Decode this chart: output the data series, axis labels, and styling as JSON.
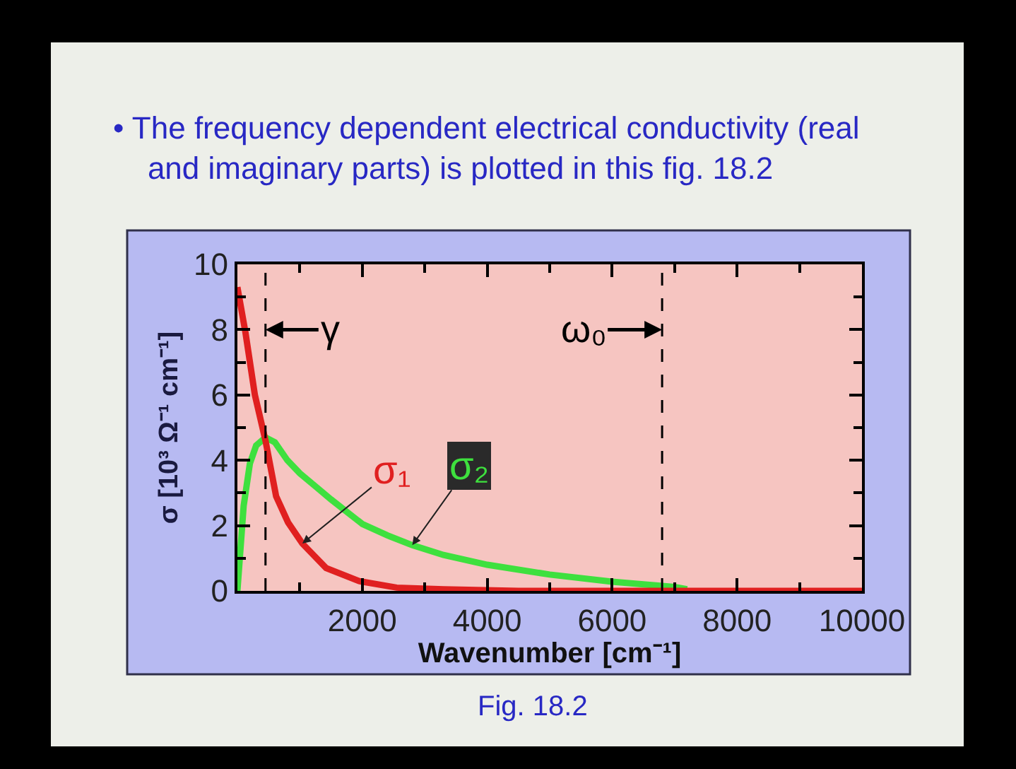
{
  "chart_data": {
    "type": "line",
    "title": "• The frequency dependent electrical conductivity (real and imaginary parts) is plotted in this fig. 18.2",
    "xlabel": "Wavenumber [cm⁻¹]",
    "ylabel": "σ [10³ Ω⁻¹ cm⁻¹]",
    "annotations": [
      "Fig. 18.2"
    ],
    "series": [
      {
        "name": "σ₁",
        "color": "#e02020",
        "x": [
          0,
          130,
          280,
          450,
          620,
          810,
          1040,
          1420,
          1950,
          2550,
          3300,
          4500,
          10000
        ],
        "values": [
          9.3,
          7.9,
          6.0,
          4.6,
          2.9,
          2.1,
          1.45,
          0.7,
          0.3,
          0.1,
          0.05,
          0,
          0
        ]
      },
      {
        "name": "σ₂",
        "color": "#3ee03e",
        "x": [
          0,
          100,
          200,
          300,
          450,
          600,
          800,
          1000,
          1250,
          1500,
          1800,
          2000,
          2400,
          2800,
          3300,
          4000,
          5000,
          6000,
          6500,
          7000,
          7200
        ],
        "values": [
          0,
          2.6,
          3.9,
          4.45,
          4.7,
          4.55,
          4.0,
          3.6,
          3.2,
          2.8,
          2.35,
          2.05,
          1.7,
          1.4,
          1.1,
          0.8,
          0.5,
          0.28,
          0.2,
          0.12,
          0.05
        ]
      }
    ],
    "xlim": [
      0,
      10000
    ],
    "ylim": [
      0,
      10
    ],
    "xticks": [
      {
        "value": 1000,
        "label": null
      },
      2000,
      {
        "value": 3000,
        "label": null
      },
      4000,
      {
        "value": 5000,
        "label": null
      },
      6000,
      {
        "value": 7000,
        "label": null
      },
      8000,
      {
        "value": 9000,
        "label": null
      },
      10000
    ],
    "yticks": [
      0,
      {
        "value": 1,
        "label": null
      },
      2,
      {
        "value": 3,
        "label": null
      },
      4,
      {
        "value": 5,
        "label": null
      },
      6,
      {
        "value": 7,
        "label": null
      },
      8,
      {
        "value": 9,
        "label": null
      },
      10
    ],
    "ref_lines": [
      {
        "axis": "x",
        "value": 450,
        "label": "γ",
        "color": "#000000",
        "line_style": "dashed"
      },
      {
        "axis": "x",
        "value": 6800,
        "label": "ω₀",
        "color": "#000000",
        "line_style": "dashed"
      }
    ]
  }
}
